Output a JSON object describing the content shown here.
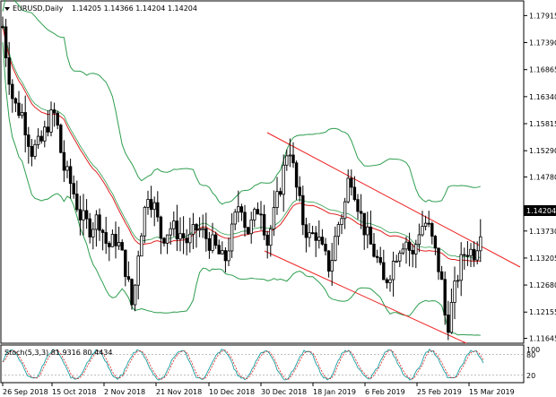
{
  "header": {
    "symbol": "EURUSD,Daily",
    "ohlc": "1.14205 1.14366 1.14204 1.14204"
  },
  "price_axis": {
    "ticks": [
      "1.17915",
      "1.17390",
      "1.16865",
      "1.16340",
      "1.15815",
      "1.15290",
      "1.14780",
      "1.13730",
      "1.13205",
      "1.12680",
      "1.12155",
      "1.11645"
    ],
    "current_price": "1.14204"
  },
  "date_axis": {
    "labels": [
      "26 Sep 2018",
      "15 Oct 2018",
      "2 Nov 2018",
      "21 Nov 2018",
      "10 Dec 2018",
      "30 Dec 2018",
      "18 Jan 2019",
      "6 Feb 2019",
      "25 Feb 2019",
      "15 Mar 2019"
    ]
  },
  "stoch": {
    "label": "Stoch(5,3,3) 81.9316 80.4434",
    "levels": [
      "80",
      "20"
    ],
    "max_label": "100"
  },
  "colors": {
    "candle": "#000000",
    "bollinger": "#2e9e4f",
    "ma": "#e02020",
    "trend": "#ee2222",
    "grid": "#000000",
    "stoch_main": "#1a9ea0",
    "stoch_signal": "#e02020"
  },
  "chart_data": {
    "type": "candlestick",
    "title": "EURUSD,Daily",
    "ylim": [
      1.1155,
      1.182
    ],
    "x_start": "2018-09-20",
    "x_end": "2019-03-21",
    "sample_points": [
      {
        "date": "2018-09-21",
        "close": 1.175
      },
      {
        "date": "2018-09-26",
        "close": 1.174
      },
      {
        "date": "2018-10-01",
        "close": 1.161
      },
      {
        "date": "2018-10-09",
        "close": 1.149
      },
      {
        "date": "2018-10-15",
        "close": 1.158
      },
      {
        "date": "2018-10-25",
        "close": 1.138
      },
      {
        "date": "2018-11-02",
        "close": 1.139
      },
      {
        "date": "2018-11-12",
        "close": 1.122
      },
      {
        "date": "2018-11-21",
        "close": 1.141
      },
      {
        "date": "2018-12-10",
        "close": 1.136
      },
      {
        "date": "2018-12-31",
        "close": 1.147
      },
      {
        "date": "2019-01-10",
        "close": 1.154
      },
      {
        "date": "2019-01-18",
        "close": 1.137
      },
      {
        "date": "2019-01-31",
        "close": 1.148
      },
      {
        "date": "2019-02-14",
        "close": 1.129
      },
      {
        "date": "2019-02-25",
        "close": 1.136
      },
      {
        "date": "2019-03-07",
        "close": 1.119
      },
      {
        "date": "2019-03-15",
        "close": 1.133
      },
      {
        "date": "2019-03-20",
        "close": 1.142
      }
    ]
  }
}
